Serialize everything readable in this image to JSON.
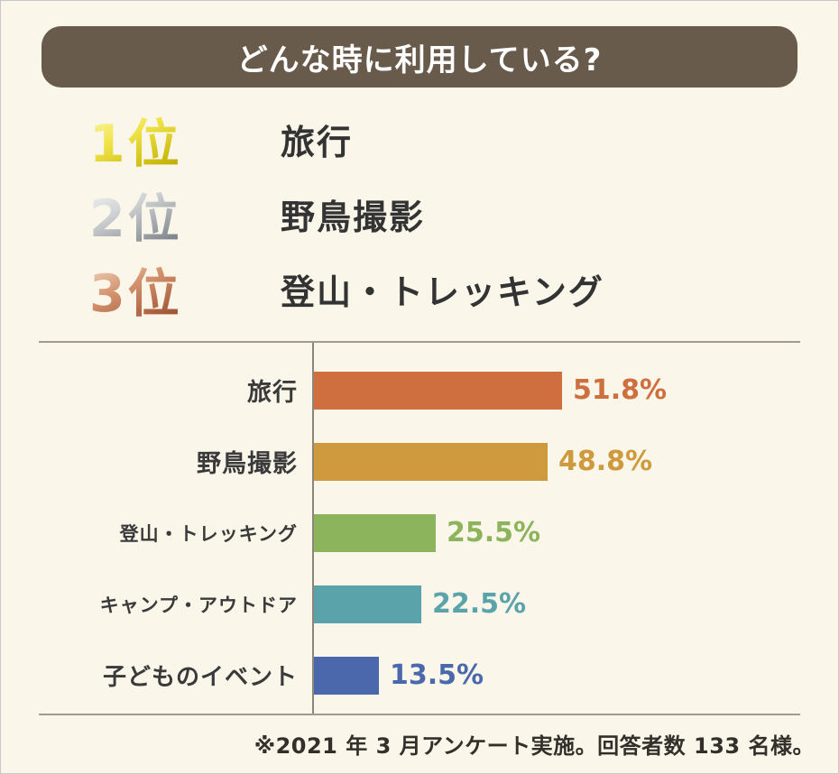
{
  "page": {
    "background_color": "#faf6e9",
    "border_color": "#c5c7ca"
  },
  "header": {
    "title": "どんな時に利用している?",
    "background_color": "#695b4b",
    "text_color": "#ffffff"
  },
  "ranking": {
    "items": [
      {
        "rank_label": "1位",
        "medal": "gold",
        "name": "旅行"
      },
      {
        "rank_label": "2位",
        "medal": "silver",
        "name": "野鳥撮影"
      },
      {
        "rank_label": "3位",
        "medal": "bronze",
        "name": "登山・トレッキング"
      }
    ]
  },
  "chart_data": {
    "type": "bar",
    "orientation": "horizontal",
    "title": "",
    "xlabel": "",
    "ylabel": "",
    "categories": [
      "旅行",
      "野鳥撮影",
      "登山・トレッキング",
      "キャンプ・アウトドア",
      "子どものイベント"
    ],
    "values": [
      51.8,
      48.8,
      25.5,
      22.5,
      13.5
    ],
    "value_labels": [
      "51.8%",
      "48.8%",
      "25.5%",
      "22.5%",
      "13.5%"
    ],
    "bar_colors": [
      "#cf6e3e",
      "#cf9a3d",
      "#8cb45c",
      "#5aa3ab",
      "#4b68ac"
    ],
    "xlim": [
      0,
      60
    ],
    "grid": false,
    "legend": false,
    "axis_color": "#8b8679",
    "label_color": "#3a3a3a"
  },
  "footer": {
    "note": "※2021 年 3 月アンケート実施。回答者数 133 名様。"
  }
}
